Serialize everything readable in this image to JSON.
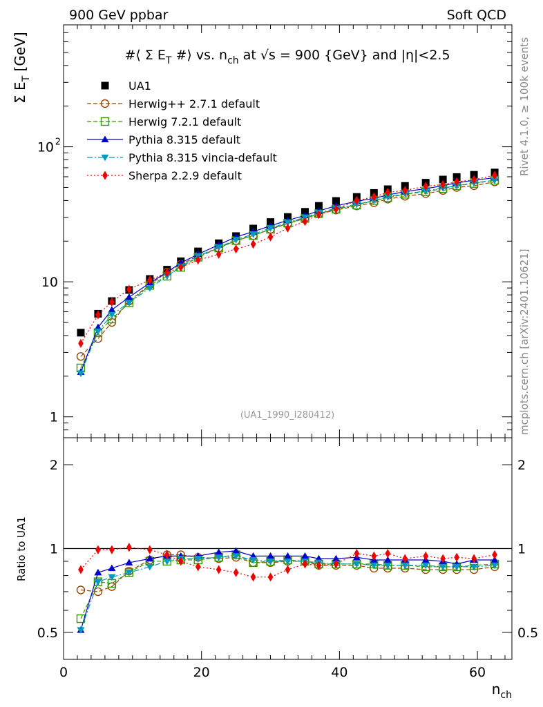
{
  "header": {
    "left": "900 GeV ppbar",
    "right": "Soft QCD"
  },
  "side_labels": {
    "rivet": "Rivet 4.1.0, ≥ 100k events",
    "mcplots": "mcplots.cern.ch [arXiv:2401.10621]"
  },
  "chart_data": [
    {
      "type": "scatter",
      "panel": "main",
      "title": "#⟨ Σ E_T #⟩ vs. n_ch at √s = 900 {GeV} and |η|<2.5",
      "watermark": "(UA1_1990_I280412)",
      "xlabel": "n_ch",
      "ylabel": "Σ E_T [GeV]",
      "xlim": [
        0,
        65
      ],
      "ylim": [
        0.7,
        800
      ],
      "yscale": "log",
      "x_ticks": [
        "0",
        "20",
        "40",
        "60"
      ],
      "y_ticks": [
        "1",
        "10",
        "10²"
      ],
      "legend_position": "top-left",
      "x": [
        2.5,
        5,
        7,
        9.5,
        12.5,
        15,
        17,
        19.5,
        22.5,
        25,
        27.5,
        30,
        32.5,
        35,
        37,
        39.5,
        42.5,
        45,
        47,
        49.5,
        52.5,
        55,
        57,
        59.5,
        62.5
      ],
      "series": [
        {
          "name": "UA1",
          "marker": "square-filled",
          "color": "#000000",
          "line": "none",
          "values": [
            4.2,
            5.8,
            7.2,
            8.7,
            10.5,
            12.3,
            14.2,
            16.8,
            19.3,
            21.8,
            24.8,
            27.7,
            30.2,
            33.0,
            36.5,
            39.7,
            42.5,
            45.5,
            48.5,
            51.3,
            54.2,
            57.2,
            59.7,
            62.0,
            64.5
          ]
        },
        {
          "name": "Herwig++ 2.7.1 default",
          "marker": "circle-open",
          "color": "#994400",
          "line": "dashed",
          "values": [
            2.8,
            3.8,
            5.0,
            7.2,
            9.5,
            11.8,
            13.5,
            15.5,
            17.8,
            20.2,
            22.0,
            24.5,
            27.0,
            29.5,
            31.8,
            34.0,
            36.5,
            38.5,
            41.0,
            43.0,
            45.0,
            47.5,
            50.0,
            51.5,
            55.0
          ]
        },
        {
          "name": "Herwig 7.2.1 default",
          "marker": "square-open",
          "color": "#339900",
          "line": "dashed",
          "values": [
            2.3,
            4.2,
            5.3,
            7.0,
            9.4,
            11.0,
            12.8,
            15.2,
            17.8,
            20.2,
            22.0,
            24.5,
            27.2,
            29.5,
            32.0,
            34.5,
            37.0,
            40.0,
            42.0,
            44.5,
            46.5,
            49.0,
            51.5,
            53.5,
            56.5
          ]
        },
        {
          "name": "Pythia 8.315 default",
          "marker": "triangle-up-filled",
          "color": "#0000cc",
          "line": "solid",
          "values": [
            2.15,
            4.6,
            6.2,
            7.7,
            9.8,
            11.8,
            13.8,
            16.0,
            18.8,
            21.5,
            23.5,
            26.0,
            28.5,
            31.0,
            33.5,
            36.5,
            39.5,
            41.5,
            44.0,
            46.5,
            49.0,
            51.5,
            54.0,
            56.5,
            59.0
          ]
        },
        {
          "name": "Pythia 8.315 vincia-default",
          "marker": "triangle-down-filled",
          "color": "#0099bb",
          "line": "dashdot",
          "values": [
            2.1,
            4.3,
            5.7,
            7.0,
            9.0,
            11.0,
            13.0,
            15.5,
            18.0,
            20.5,
            22.5,
            25.0,
            27.5,
            30.0,
            32.5,
            35.0,
            37.5,
            40.0,
            42.5,
            45.0,
            47.0,
            49.5,
            51.5,
            54.0,
            56.5
          ]
        },
        {
          "name": "Sherpa 2.2.9 default",
          "marker": "diamond-filled",
          "color": "#ee0000",
          "line": "dotted",
          "values": [
            3.5,
            5.7,
            7.1,
            8.8,
            10.3,
            11.7,
            12.8,
            14.5,
            16.0,
            17.5,
            19.0,
            21.5,
            25.0,
            28.0,
            31.5,
            34.5,
            40.0,
            42.5,
            46.0,
            47.5,
            51.0,
            52.5,
            55.0,
            57.0,
            61.5
          ]
        }
      ]
    },
    {
      "type": "line",
      "panel": "ratio",
      "ylabel": "Ratio to UA1",
      "xlabel": "n_ch",
      "xlim": [
        0,
        65
      ],
      "ylim": [
        0.4,
        2.5
      ],
      "yscale": "log",
      "y_ticks": [
        "0.5",
        "1",
        "2"
      ],
      "reference_line": 1,
      "x": [
        2.5,
        5,
        7,
        9.5,
        12.5,
        15,
        17,
        19.5,
        22.5,
        25,
        27.5,
        30,
        32.5,
        35,
        37,
        39.5,
        42.5,
        45,
        47,
        49.5,
        52.5,
        55,
        57,
        59.5,
        62.5
      ],
      "series": [
        {
          "name": "Herwig++ 2.7.1 default",
          "values": [
            0.71,
            0.7,
            0.73,
            0.83,
            0.91,
            0.95,
            0.95,
            0.93,
            0.92,
            0.93,
            0.89,
            0.89,
            0.9,
            0.9,
            0.87,
            0.87,
            0.87,
            0.85,
            0.85,
            0.85,
            0.84,
            0.84,
            0.84,
            0.84,
            0.86
          ]
        },
        {
          "name": "Herwig 7.2.1 default",
          "values": [
            0.56,
            0.76,
            0.75,
            0.82,
            0.9,
            0.9,
            0.91,
            0.91,
            0.93,
            0.95,
            0.89,
            0.9,
            0.91,
            0.9,
            0.88,
            0.88,
            0.88,
            0.88,
            0.87,
            0.87,
            0.86,
            0.86,
            0.86,
            0.87,
            0.88
          ]
        },
        {
          "name": "Pythia 8.315 default",
          "values": [
            0.51,
            0.82,
            0.85,
            0.89,
            0.92,
            0.94,
            0.94,
            0.94,
            0.97,
            0.98,
            0.94,
            0.94,
            0.94,
            0.94,
            0.92,
            0.92,
            0.93,
            0.91,
            0.91,
            0.91,
            0.91,
            0.9,
            0.88,
            0.91,
            0.91
          ]
        },
        {
          "name": "Pythia 8.315 vincia-default",
          "values": [
            0.51,
            0.76,
            0.79,
            0.82,
            0.86,
            0.9,
            0.92,
            0.92,
            0.93,
            0.94,
            0.91,
            0.9,
            0.9,
            0.9,
            0.89,
            0.88,
            0.88,
            0.87,
            0.87,
            0.87,
            0.87,
            0.86,
            0.86,
            0.86,
            0.87
          ]
        },
        {
          "name": "Sherpa 2.2.9 default",
          "values": [
            0.84,
            0.99,
            0.99,
            1.01,
            0.99,
            0.95,
            0.9,
            0.86,
            0.84,
            0.82,
            0.79,
            0.79,
            0.84,
            0.88,
            0.87,
            0.88,
            0.96,
            0.94,
            0.96,
            0.92,
            0.94,
            0.92,
            0.93,
            0.92,
            0.95
          ]
        }
      ]
    }
  ]
}
